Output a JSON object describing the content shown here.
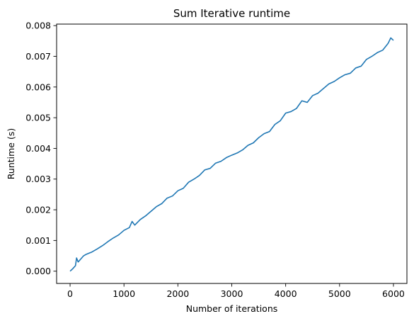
{
  "chart_data": {
    "type": "line",
    "title": "Sum Iterative runtime",
    "xlabel": "Number of iterations",
    "ylabel": "Runtime (s)",
    "xlim": [
      -250,
      6250
    ],
    "ylim": [
      -0.0004,
      0.00805
    ],
    "xticks": [
      0,
      1000,
      2000,
      3000,
      4000,
      5000,
      6000
    ],
    "xtick_labels": [
      "0",
      "1000",
      "2000",
      "3000",
      "4000",
      "5000",
      "6000"
    ],
    "yticks": [
      0.0,
      0.001,
      0.002,
      0.003,
      0.004,
      0.005,
      0.006,
      0.007,
      0.008
    ],
    "ytick_labels": [
      "0.000",
      "0.001",
      "0.002",
      "0.003",
      "0.004",
      "0.005",
      "0.006",
      "0.007",
      "0.008"
    ],
    "grid": false,
    "legend": "none",
    "series": [
      {
        "color": "#1f77b4",
        "x": [
          0,
          50,
          100,
          120,
          150,
          200,
          250,
          300,
          400,
          500,
          600,
          700,
          800,
          900,
          1000,
          1100,
          1150,
          1200,
          1300,
          1400,
          1500,
          1600,
          1700,
          1800,
          1900,
          2000,
          2100,
          2200,
          2300,
          2400,
          2500,
          2600,
          2700,
          2800,
          2900,
          3000,
          3100,
          3200,
          3300,
          3400,
          3500,
          3600,
          3700,
          3800,
          3900,
          4000,
          4100,
          4200,
          4300,
          4400,
          4500,
          4600,
          4700,
          4800,
          4900,
          5000,
          5100,
          5200,
          5300,
          5400,
          5500,
          5600,
          5700,
          5800,
          5900,
          5950,
          6000
        ],
        "y": [
          0.0,
          8e-05,
          0.00018,
          0.00043,
          0.0003,
          0.0004,
          0.0005,
          0.00055,
          0.00062,
          0.00072,
          0.00083,
          0.00096,
          0.00108,
          0.00118,
          0.00133,
          0.00142,
          0.00162,
          0.0015,
          0.00168,
          0.0018,
          0.00195,
          0.0021,
          0.0022,
          0.00238,
          0.00245,
          0.00262,
          0.0027,
          0.0029,
          0.003,
          0.00312,
          0.0033,
          0.00335,
          0.00352,
          0.00358,
          0.0037,
          0.00378,
          0.00385,
          0.00395,
          0.0041,
          0.00418,
          0.00435,
          0.00448,
          0.00455,
          0.00478,
          0.0049,
          0.00515,
          0.0052,
          0.0053,
          0.00555,
          0.0055,
          0.00572,
          0.0058,
          0.00595,
          0.0061,
          0.00618,
          0.0063,
          0.0064,
          0.00645,
          0.00662,
          0.00668,
          0.0069,
          0.007,
          0.00712,
          0.0072,
          0.00742,
          0.0076,
          0.00752
        ]
      }
    ]
  }
}
